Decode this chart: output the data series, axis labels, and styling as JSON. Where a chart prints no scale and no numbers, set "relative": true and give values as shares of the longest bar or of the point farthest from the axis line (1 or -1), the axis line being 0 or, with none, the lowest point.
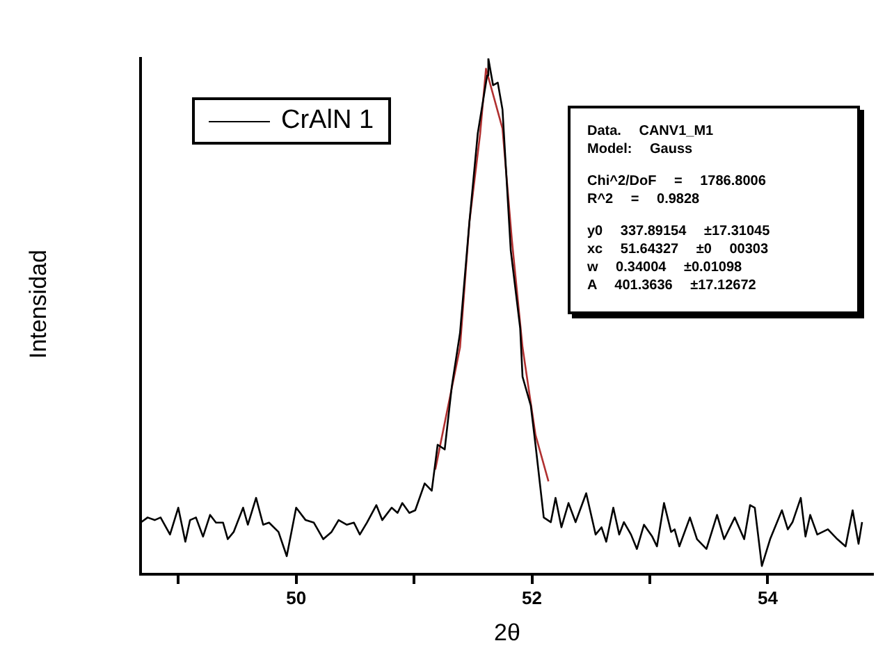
{
  "chart_data": {
    "type": "line",
    "xlabel": "2θ",
    "ylabel": "Intensidad",
    "relative": true,
    "xlim": [
      48.68,
      54.9
    ],
    "xticks": [
      {
        "value": 49,
        "label": null
      },
      50,
      {
        "value": 51,
        "label": null
      },
      52,
      {
        "value": 53,
        "label": null
      },
      54
    ],
    "legend": "top left",
    "marker": "none",
    "grid": false,
    "annotations": [
      "Data. CANV1_M1",
      "Model: Gauss",
      "Chi^2/DoF = 1786.8006",
      "R^2 = 0.9828",
      "y0 337.89154 ±17.31045",
      "xc 51.64327 ±0 00303",
      "w 0.34004 ±0.01098",
      "A 401.3636 ±17.12672"
    ],
    "series": [
      {
        "name": "CrAlN 1",
        "color": "#000000",
        "x": [
          48.68,
          48.74,
          48.8,
          48.85,
          48.93,
          49.0,
          49.06,
          49.1,
          49.15,
          49.21,
          49.27,
          49.32,
          49.38,
          49.42,
          49.47,
          49.55,
          49.59,
          49.66,
          49.72,
          49.77,
          49.85,
          49.92,
          50.0,
          50.08,
          50.15,
          50.23,
          50.3,
          50.36,
          50.43,
          50.49,
          50.54,
          50.6,
          50.68,
          50.73,
          50.81,
          50.86,
          50.9,
          50.96,
          51.01,
          51.09,
          51.15,
          51.2,
          51.26,
          51.32,
          51.39,
          51.47,
          51.54,
          51.62,
          51.63,
          51.67,
          51.71,
          51.75,
          51.82,
          51.9,
          51.92,
          51.99,
          52.03,
          52.1,
          52.16,
          52.2,
          52.25,
          52.31,
          52.37,
          52.46,
          52.54,
          52.59,
          52.63,
          52.69,
          52.74,
          52.78,
          52.84,
          52.89,
          52.95,
          53.02,
          53.06,
          53.12,
          53.18,
          53.21,
          53.25,
          53.34,
          53.4,
          53.48,
          53.57,
          53.63,
          53.72,
          53.8,
          53.85,
          53.89,
          53.95,
          54.02,
          54.12,
          54.17,
          54.21,
          54.28,
          54.32,
          54.36,
          54.42,
          54.51,
          54.59,
          54.66,
          54.72,
          54.77,
          54.8
        ],
        "values": [
          0.1,
          0.11,
          0.105,
          0.11,
          0.077,
          0.129,
          0.063,
          0.105,
          0.11,
          0.073,
          0.115,
          0.1,
          0.1,
          0.068,
          0.082,
          0.129,
          0.096,
          0.148,
          0.096,
          0.1,
          0.082,
          0.035,
          0.129,
          0.105,
          0.1,
          0.068,
          0.082,
          0.105,
          0.096,
          0.1,
          0.077,
          0.1,
          0.134,
          0.105,
          0.129,
          0.119,
          0.138,
          0.119,
          0.124,
          0.176,
          0.162,
          0.251,
          0.242,
          0.364,
          0.468,
          0.684,
          0.854,
          0.967,
          1,
          0.948,
          0.953,
          0.901,
          0.628,
          0.477,
          0.383,
          0.327,
          0.251,
          0.11,
          0.101,
          0.148,
          0.091,
          0.138,
          0.101,
          0.157,
          0.077,
          0.091,
          0.063,
          0.129,
          0.077,
          0.101,
          0.077,
          0.049,
          0.096,
          0.073,
          0.054,
          0.138,
          0.082,
          0.087,
          0.054,
          0.11,
          0.068,
          0.049,
          0.115,
          0.068,
          0.11,
          0.068,
          0.134,
          0.129,
          0.016,
          0.068,
          0.124,
          0.087,
          0.101,
          0.148,
          0.073,
          0.115,
          0.077,
          0.087,
          0.068,
          0.054,
          0.124,
          0.059,
          0.101
        ]
      },
      {
        "color": "#b03030",
        "x": [
          51.18,
          51.39,
          51.47,
          51.56,
          51.61,
          51.75,
          51.83,
          51.92,
          52.03,
          52.14
        ],
        "values": [
          0.203,
          0.44,
          0.684,
          0.853,
          0.98,
          0.864,
          0.647,
          0.44,
          0.27,
          0.18
        ]
      }
    ]
  }
}
